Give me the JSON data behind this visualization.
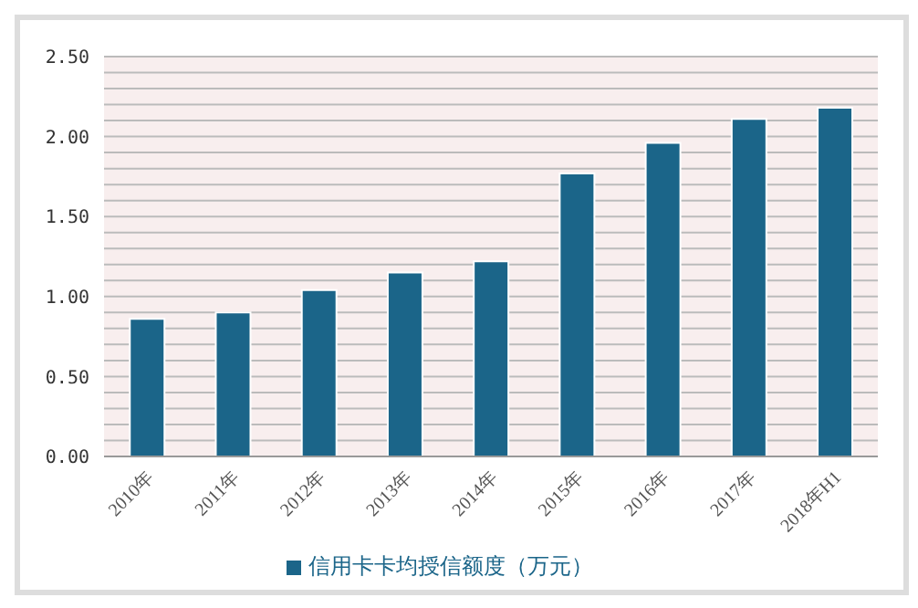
{
  "chart_data": {
    "type": "bar",
    "categories": [
      "2010年",
      "2011年",
      "2012年",
      "2013年",
      "2014年",
      "2015年",
      "2016年",
      "2017年",
      "2018年H1"
    ],
    "series": [
      {
        "name": "信用卡卡均授信额度（万元）",
        "color": "#1b6589",
        "values": [
          0.86,
          0.9,
          1.04,
          1.15,
          1.22,
          1.77,
          1.96,
          2.11,
          2.18
        ]
      }
    ],
    "ylim": [
      0,
      2.5
    ],
    "yticks": [
      {
        "value": 0,
        "label": "0.00"
      },
      {
        "value": 0.1,
        "label": null
      },
      {
        "value": 0.2,
        "label": null
      },
      {
        "value": 0.3,
        "label": null
      },
      {
        "value": 0.4,
        "label": null
      },
      {
        "value": 0.5,
        "label": "0.50"
      },
      {
        "value": 0.6,
        "label": null
      },
      {
        "value": 0.7,
        "label": null
      },
      {
        "value": 0.8,
        "label": null
      },
      {
        "value": 0.9,
        "label": null
      },
      {
        "value": 1,
        "label": "1.00"
      },
      {
        "value": 1.1,
        "label": null
      },
      {
        "value": 1.2,
        "label": null
      },
      {
        "value": 1.3,
        "label": null
      },
      {
        "value": 1.4,
        "label": null
      },
      {
        "value": 1.5,
        "label": "1.50"
      },
      {
        "value": 1.6,
        "label": null
      },
      {
        "value": 1.7,
        "label": null
      },
      {
        "value": 1.8,
        "label": null
      },
      {
        "value": 1.9,
        "label": null
      },
      {
        "value": 2,
        "label": "2.00"
      },
      {
        "value": 2.1,
        "label": null
      },
      {
        "value": 2.2,
        "label": null
      },
      {
        "value": 2.3,
        "label": null
      },
      {
        "value": 2.4,
        "label": null
      },
      {
        "value": 2.5,
        "label": "2.50"
      }
    ],
    "grid": "y",
    "legend": "bottom"
  }
}
